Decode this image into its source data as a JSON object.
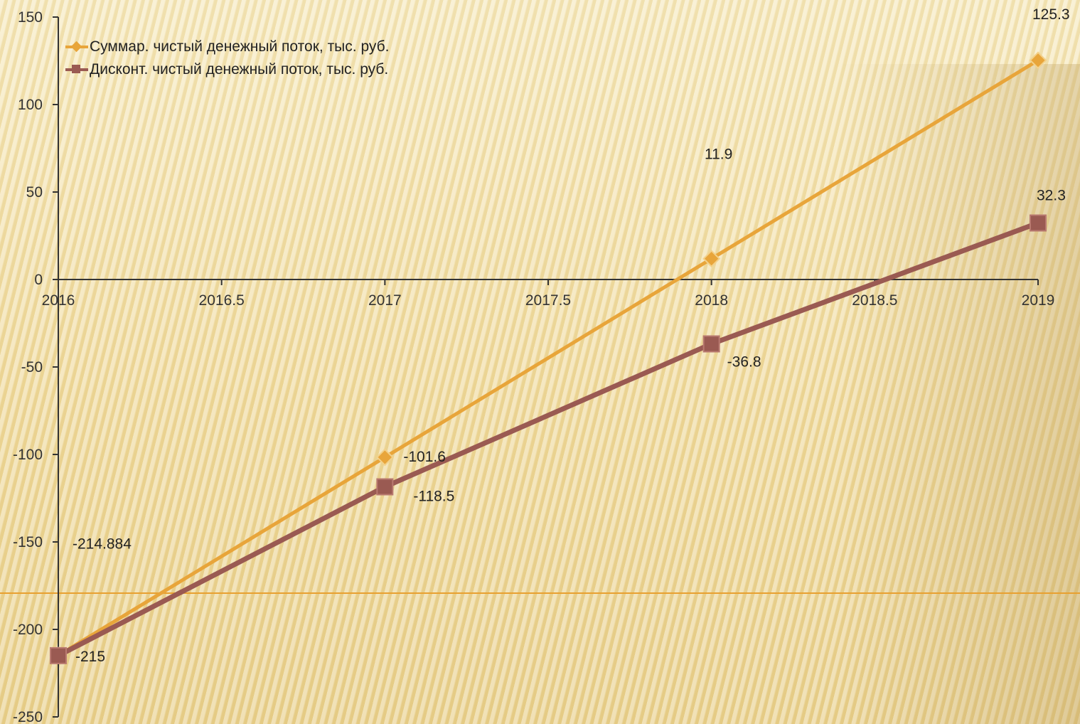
{
  "chart_data": {
    "type": "line",
    "x": [
      2016,
      2017,
      2018,
      2019
    ],
    "xlim": [
      2016,
      2019
    ],
    "ylim": [
      -250,
      150
    ],
    "x_ticks": [
      "2016",
      "2016.5",
      "2017",
      "2017.5",
      "2018",
      "2018.5",
      "2019"
    ],
    "y_ticks": [
      "150",
      "100",
      "50",
      "0",
      "-50",
      "-100",
      "-150",
      "-200",
      "-250"
    ],
    "legend_position": "top-left",
    "grid": false,
    "series": [
      {
        "name": "Суммар. чистый денежный поток, тыс. руб.",
        "values": [
          -214.884,
          -101.6,
          11.9,
          125.3
        ],
        "labels": [
          "-214.884",
          "-101.6",
          "11.9",
          "125.3"
        ],
        "color": "#e8a53a",
        "marker": "diamond"
      },
      {
        "name": "Дисконт. чистый денежный поток, тыс. руб.",
        "values": [
          -215,
          -118.5,
          -36.8,
          32.3
        ],
        "labels": [
          "-215",
          "-118.5",
          "-36.8",
          "32.3"
        ],
        "color": "#9a5a52",
        "marker": "square"
      }
    ]
  }
}
